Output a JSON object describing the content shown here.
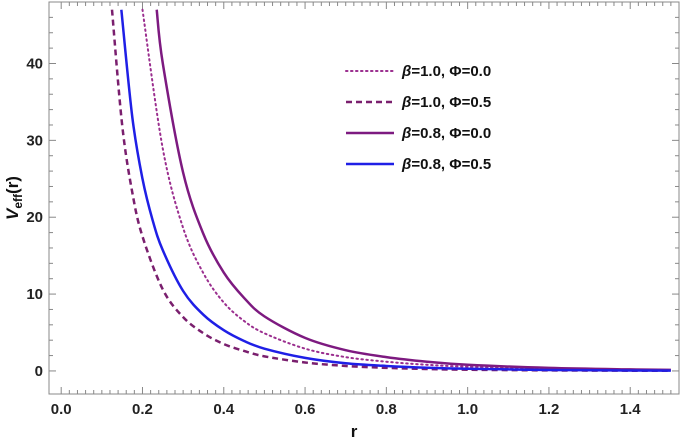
{
  "chart_data": {
    "type": "line",
    "title": "",
    "xlabel": "r",
    "ylabel_main": "V",
    "ylabel_sub": "eff",
    "ylabel_arg": "(r)",
    "xlim": [
      -0.03,
      1.52
    ],
    "ylim": [
      -3,
      48
    ],
    "xticks": [
      0.0,
      0.2,
      0.4,
      0.6,
      0.8,
      1.0,
      1.2,
      1.4
    ],
    "xtick_labels": [
      "0.0",
      "0.2",
      "0.4",
      "0.6",
      "0.8",
      "1.0",
      "1.2",
      "1.4"
    ],
    "yticks": [
      0,
      10,
      20,
      30,
      40
    ],
    "ytick_labels": [
      "0",
      "10",
      "20",
      "30",
      "40"
    ],
    "grid": false,
    "legend_position": "top-right",
    "series": [
      {
        "name": "β=1.0, Φ=0.0",
        "label_beta": "β",
        "label_rest": "=1.0, Φ=0.0",
        "color": "#9b2f8f",
        "style": "dotted",
        "x": [
          0.2,
          0.25,
          0.3,
          0.35,
          0.4,
          0.45,
          0.5,
          0.6,
          0.7,
          0.8,
          0.9,
          1.0,
          1.2,
          1.4,
          1.5
        ],
        "y": [
          47.0,
          28.9,
          18.6,
          12.7,
          8.9,
          6.5,
          4.9,
          2.9,
          1.8,
          1.2,
          0.8,
          0.55,
          0.27,
          0.14,
          0.1
        ]
      },
      {
        "name": "β=1.0, Φ=0.5",
        "label_beta": "β",
        "label_rest": "=1.0, Φ=0.5",
        "color": "#7a1f6e",
        "style": "dashed",
        "x": [
          0.125,
          0.15,
          0.175,
          0.2,
          0.25,
          0.3,
          0.35,
          0.4,
          0.45,
          0.5,
          0.6,
          0.7,
          0.8,
          0.9,
          1.0,
          1.2,
          1.4,
          1.5
        ],
        "y": [
          47.0,
          32.0,
          23.2,
          17.5,
          10.6,
          7.0,
          4.9,
          3.5,
          2.6,
          1.9,
          1.1,
          0.65,
          0.4,
          0.25,
          0.16,
          0.07,
          0.03,
          0.02
        ]
      },
      {
        "name": "β=0.8, Φ=0.0",
        "label_beta": "β",
        "label_rest": "=0.8, Φ=0.0",
        "color": "#7d1a80",
        "style": "solid",
        "x": [
          0.235,
          0.25,
          0.3,
          0.35,
          0.4,
          0.45,
          0.5,
          0.6,
          0.7,
          0.8,
          0.9,
          1.0,
          1.2,
          1.4,
          1.5
        ],
        "y": [
          47.0,
          40.0,
          25.8,
          17.8,
          12.8,
          9.5,
          7.1,
          4.3,
          2.7,
          1.8,
          1.2,
          0.8,
          0.4,
          0.2,
          0.14
        ]
      },
      {
        "name": "β=0.8, Φ=0.5",
        "label_beta": "β",
        "label_rest": "=0.8, Φ=0.5",
        "color": "#1f1fe6",
        "style": "solid",
        "x": [
          0.148,
          0.175,
          0.2,
          0.225,
          0.25,
          0.3,
          0.35,
          0.4,
          0.45,
          0.5,
          0.6,
          0.7,
          0.8,
          0.9,
          1.0,
          1.2,
          1.4,
          1.5
        ],
        "y": [
          47.0,
          33.0,
          25.0,
          19.6,
          15.7,
          10.4,
          7.3,
          5.3,
          3.9,
          2.9,
          1.7,
          1.0,
          0.65,
          0.42,
          0.28,
          0.13,
          0.06,
          0.04
        ]
      }
    ]
  }
}
